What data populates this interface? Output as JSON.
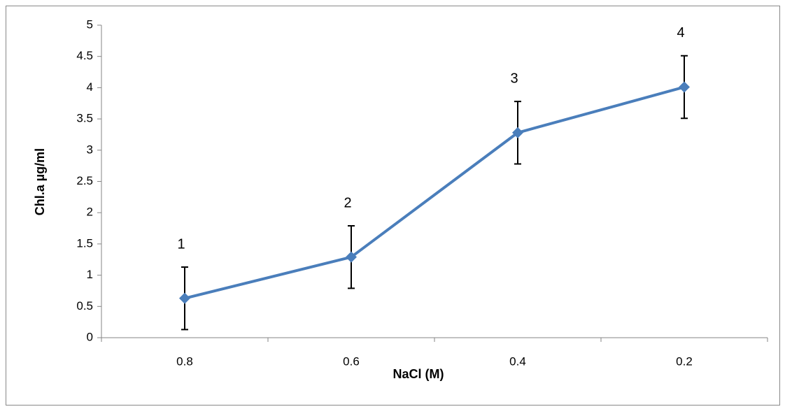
{
  "chart_data": {
    "type": "line",
    "x_label": "NaCl (M)",
    "y_label": "Chl.a µg/ml",
    "categories": [
      "0.8",
      "0.6",
      "0.4",
      "0.2"
    ],
    "values": [
      0.63,
      1.29,
      3.28,
      4.01
    ],
    "errors": [
      0.5,
      0.5,
      0.5,
      0.5
    ],
    "annotations": [
      "1",
      "2",
      "3",
      "4"
    ],
    "color": "#4a7ebb",
    "ylim": [
      0,
      5
    ],
    "yticks": [
      0,
      0.5,
      1,
      1.5,
      2,
      2.5,
      3,
      3.5,
      4,
      4.5,
      5
    ],
    "grid": false
  }
}
